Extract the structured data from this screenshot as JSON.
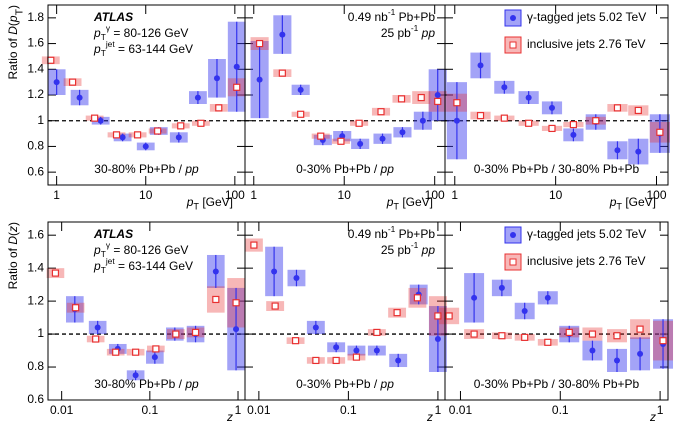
{
  "chart_data": [
    {
      "type": "scatter",
      "log_x": true,
      "xlim": [
        0.8,
        130
      ],
      "ylim": [
        0.5,
        1.9
      ],
      "xticks": [
        1,
        10,
        100
      ],
      "yticks": [
        0.6,
        0.8,
        1,
        1.2,
        1.4,
        1.6,
        1.8
      ],
      "ytick_labels": true,
      "hline": 1,
      "ylabel": [
        {
          "t": "Ratio of "
        },
        {
          "t": "D",
          "italic": true
        },
        {
          "t": "("
        },
        {
          "t": "p",
          "italic": true
        },
        {
          "t": "T",
          "sub": true
        },
        {
          "t": ")"
        }
      ],
      "xlabel": [
        {
          "t": "p",
          "italic": true
        },
        {
          "t": "T",
          "sub": true
        },
        {
          "t": " [GeV]"
        }
      ],
      "annotations": [
        {
          "corner": "top-left",
          "runs": [
            {
              "t": "ATLAS",
              "bold": true,
              "italic": true
            }
          ]
        },
        {
          "corner": "top-left",
          "runs": [
            {
              "t": "p",
              "italic": true
            },
            {
              "t": "T",
              "sub": true
            },
            {
              "t": "γ",
              "sup": true
            },
            {
              "t": " = 80-126 GeV"
            }
          ]
        },
        {
          "corner": "top-left",
          "runs": [
            {
              "t": "p",
              "italic": true
            },
            {
              "t": "T",
              "sub": true
            },
            {
              "t": "jet",
              "sup": true
            },
            {
              "t": " = 63-144 GeV"
            }
          ]
        },
        {
          "corner": "bottom-center",
          "runs": [
            {
              "t": "30-80% Pb+Pb / "
            },
            {
              "t": "pp",
              "italic": true
            }
          ]
        }
      ],
      "series": [
        {
          "color": "#3333ee",
          "marker": "circle",
          "x": [
            1,
            1.81,
            3.12,
            5.5,
            10,
            14,
            23.5,
            38.5,
            63,
            105
          ],
          "values": [
            1.3,
            1.18,
            1.0,
            0.87,
            0.8,
            0.92,
            0.87,
            1.18,
            1.33,
            1.42
          ],
          "errors": [
            0.1,
            0.06,
            0.03,
            0.03,
            0.03,
            0.03,
            0.04,
            0.05,
            0.15,
            0.35
          ]
        },
        {
          "color": "#e83030",
          "marker": "square-open",
          "x": [
            0.86,
            1.51,
            2.67,
            4.7,
            8.1,
            13.6,
            24.7,
            41.6,
            66,
            105
          ],
          "values": [
            1.47,
            1.3,
            1.02,
            0.89,
            0.89,
            0.92,
            0.96,
            0.98,
            1.1,
            1.26
          ],
          "errors": [
            0.03,
            0.03,
            0.02,
            0.02,
            0.02,
            0.02,
            0.02,
            0.02,
            0.03,
            0.07
          ]
        }
      ]
    },
    {
      "type": "scatter",
      "log_x": true,
      "xlim": [
        0.8,
        130
      ],
      "ylim": [
        0.5,
        1.9
      ],
      "xticks": [
        1,
        10,
        100
      ],
      "yticks": [
        0.6,
        0.8,
        1,
        1.2,
        1.4,
        1.6,
        1.8
      ],
      "ytick_labels": false,
      "hline": 1,
      "xlabel": [
        {
          "t": "p",
          "italic": true
        },
        {
          "t": "T",
          "sub": true
        },
        {
          "t": " [GeV]"
        }
      ],
      "annotations": [
        {
          "corner": "top-right",
          "runs": [
            {
              "t": "0.49 nb"
            },
            {
              "t": "-1",
              "sup": true
            },
            {
              "t": " Pb+Pb"
            }
          ]
        },
        {
          "corner": "top-right",
          "runs": [
            {
              "t": "25 pb"
            },
            {
              "t": "-1",
              "sup": true
            },
            {
              "t": " "
            },
            {
              "t": "pp",
              "italic": true
            }
          ]
        },
        {
          "corner": "bottom-center",
          "runs": [
            {
              "t": "0-30% Pb+Pb / "
            },
            {
              "t": "pp",
              "italic": true
            }
          ]
        }
      ],
      "series": [
        {
          "color": "#3333ee",
          "marker": "circle",
          "x": [
            1.16,
            2.07,
            3.3,
            5.8,
            9.5,
            15,
            26.5,
            44,
            74,
            108
          ],
          "values": [
            1.32,
            1.67,
            1.24,
            0.85,
            0.88,
            0.82,
            0.86,
            0.91,
            1.0,
            1.2
          ],
          "errors": [
            0.3,
            0.15,
            0.04,
            0.04,
            0.04,
            0.04,
            0.04,
            0.04,
            0.07,
            0.2
          ]
        },
        {
          "color": "#e83030",
          "marker": "square-open",
          "x": [
            1.16,
            2.07,
            3.3,
            5.5,
            9.2,
            14.6,
            25.5,
            43,
            71,
            108
          ],
          "values": [
            1.6,
            1.37,
            1.05,
            0.88,
            0.84,
            0.98,
            1.07,
            1.17,
            1.18,
            1.15
          ],
          "errors": [
            0.05,
            0.03,
            0.02,
            0.02,
            0.02,
            0.02,
            0.03,
            0.03,
            0.05,
            0.08
          ]
        }
      ]
    },
    {
      "type": "scatter",
      "log_x": true,
      "xlim": [
        0.8,
        130
      ],
      "ylim": [
        0.5,
        1.9
      ],
      "xticks": [
        1,
        10,
        100
      ],
      "yticks": [
        0.6,
        0.8,
        1,
        1.2,
        1.4,
        1.6,
        1.8
      ],
      "ytick_labels": false,
      "hline": 1,
      "legend": "top-right",
      "xlabel": [
        {
          "t": "p",
          "italic": true
        },
        {
          "t": "T",
          "sub": true
        },
        {
          "t": " [GeV]"
        }
      ],
      "annotations": [
        {
          "corner": "bottom-center",
          "runs": [
            {
              "t": "0-30% Pb+Pb / 30-80% Pb+Pb"
            }
          ]
        }
      ],
      "series": [
        {
          "name": "γ-tagged jets 5.02 TeV",
          "color": "#3333ee",
          "marker": "circle",
          "x": [
            1.05,
            1.8,
            3.1,
            5.4,
            9.2,
            15,
            25,
            41,
            66,
            108
          ],
          "values": [
            1.0,
            1.43,
            1.26,
            1.18,
            1.1,
            0.89,
            0.99,
            0.77,
            0.76,
            0.9
          ],
          "errors": [
            0.3,
            0.1,
            0.05,
            0.05,
            0.05,
            0.05,
            0.06,
            0.07,
            0.1,
            0.15
          ]
        },
        {
          "name": "inclusive jets 2.76 TeV",
          "color": "#e83030",
          "marker": "square-open",
          "x": [
            1.05,
            1.8,
            3.1,
            5.4,
            9.2,
            15,
            25,
            41,
            66,
            108
          ],
          "values": [
            1.14,
            1.04,
            1.02,
            0.98,
            0.94,
            0.97,
            1.0,
            1.1,
            1.08,
            0.91
          ],
          "errors": [
            0.07,
            0.03,
            0.02,
            0.02,
            0.02,
            0.02,
            0.03,
            0.03,
            0.04,
            0.08
          ]
        }
      ]
    },
    {
      "type": "scatter",
      "log_x": true,
      "xlim": [
        0.007,
        1.2
      ],
      "ylim": [
        0.6,
        1.68
      ],
      "xticks": [
        0.01,
        0.1,
        1
      ],
      "yticks": [
        0.6,
        0.8,
        1,
        1.2,
        1.4,
        1.6
      ],
      "ytick_labels": true,
      "hline": 1,
      "ylabel": [
        {
          "t": "Ratio of "
        },
        {
          "t": "D",
          "italic": true
        },
        {
          "t": "("
        },
        {
          "t": "z",
          "italic": true
        },
        {
          "t": ")"
        }
      ],
      "xlabel": [
        {
          "t": "z",
          "italic": true
        }
      ],
      "annotations": [
        {
          "corner": "top-left",
          "runs": [
            {
              "t": "ATLAS",
              "bold": true,
              "italic": true
            }
          ]
        },
        {
          "corner": "top-left",
          "runs": [
            {
              "t": "p",
              "italic": true
            },
            {
              "t": "T",
              "sub": true
            },
            {
              "t": "γ",
              "sup": true
            },
            {
              "t": " = 80-126 GeV"
            }
          ]
        },
        {
          "corner": "top-left",
          "runs": [
            {
              "t": "p",
              "italic": true
            },
            {
              "t": "T",
              "sub": true
            },
            {
              "t": "jet",
              "sup": true
            },
            {
              "t": " = 63-144 GeV"
            }
          ]
        },
        {
          "corner": "bottom-center",
          "runs": [
            {
              "t": "30-80% Pb+Pb / "
            },
            {
              "t": "pp",
              "italic": true
            }
          ]
        }
      ],
      "series": [
        {
          "color": "#3333ee",
          "marker": "circle",
          "x": [
            0.0141,
            0.0256,
            0.0433,
            0.069,
            0.114,
            0.192,
            0.33,
            0.56,
            0.95
          ],
          "values": [
            1.15,
            1.04,
            0.91,
            0.75,
            0.86,
            1.0,
            1.0,
            1.38,
            1.03
          ],
          "errors": [
            0.08,
            0.04,
            0.03,
            0.03,
            0.04,
            0.04,
            0.05,
            0.1,
            0.25
          ]
        },
        {
          "color": "#e83030",
          "marker": "square-open",
          "x": [
            0.0085,
            0.0144,
            0.0243,
            0.041,
            0.069,
            0.117,
            0.197,
            0.33,
            0.56,
            0.95
          ],
          "values": [
            1.37,
            1.16,
            0.97,
            0.89,
            0.89,
            0.91,
            1.0,
            1.01,
            1.21,
            1.19
          ],
          "errors": [
            0.03,
            0.03,
            0.02,
            0.02,
            0.02,
            0.02,
            0.03,
            0.03,
            0.08,
            0.15
          ]
        }
      ]
    },
    {
      "type": "scatter",
      "log_x": true,
      "xlim": [
        0.007,
        1.2
      ],
      "ylim": [
        0.6,
        1.68
      ],
      "xticks": [
        0.01,
        0.1,
        1
      ],
      "yticks": [
        0.6,
        0.8,
        1,
        1.2,
        1.4,
        1.6
      ],
      "ytick_labels": false,
      "hline": 1,
      "xlabel": [
        {
          "t": "z",
          "italic": true
        }
      ],
      "annotations": [
        {
          "corner": "top-right",
          "runs": [
            {
              "t": "0.49 nb"
            },
            {
              "t": "-1",
              "sup": true
            },
            {
              "t": " Pb+Pb"
            }
          ]
        },
        {
          "corner": "top-right",
          "runs": [
            {
              "t": "25 pb"
            },
            {
              "t": "-1",
              "sup": true
            },
            {
              "t": " "
            },
            {
              "t": "pp",
              "italic": true
            }
          ]
        },
        {
          "corner": "bottom-center",
          "runs": [
            {
              "t": "0-30% Pb+Pb / "
            },
            {
              "t": "pp",
              "italic": true
            }
          ]
        }
      ],
      "series": [
        {
          "color": "#3333ee",
          "marker": "circle",
          "x": [
            0.0148,
            0.0263,
            0.0433,
            0.073,
            0.123,
            0.208,
            0.36,
            0.61,
            1.0
          ],
          "values": [
            1.38,
            1.34,
            1.04,
            0.92,
            0.9,
            0.9,
            0.84,
            1.24,
            0.97
          ],
          "errors": [
            0.15,
            0.05,
            0.04,
            0.03,
            0.03,
            0.03,
            0.04,
            0.06,
            0.2
          ]
        },
        {
          "color": "#e83030",
          "marker": "square-open",
          "x": [
            0.0088,
            0.0152,
            0.0257,
            0.0433,
            0.073,
            0.123,
            0.208,
            0.35,
            0.59,
            1.0
          ],
          "values": [
            1.54,
            1.17,
            0.96,
            0.84,
            0.84,
            0.86,
            1.01,
            1.13,
            1.22,
            1.11
          ],
          "errors": [
            0.04,
            0.03,
            0.02,
            0.02,
            0.02,
            0.02,
            0.02,
            0.03,
            0.06,
            0.12
          ]
        }
      ]
    },
    {
      "type": "scatter",
      "log_x": true,
      "xlim": [
        0.007,
        1.2
      ],
      "ylim": [
        0.6,
        1.68
      ],
      "xticks": [
        0.01,
        0.1,
        1
      ],
      "yticks": [
        0.6,
        0.8,
        1,
        1.2,
        1.4,
        1.6
      ],
      "ytick_labels": false,
      "hline": 1,
      "legend": "top-right",
      "xlabel": [
        {
          "t": "z",
          "italic": true
        }
      ],
      "annotations": [
        {
          "corner": "bottom-center",
          "runs": [
            {
              "t": "0-30% Pb+Pb / 30-80% Pb+Pb"
            }
          ]
        }
      ],
      "series": [
        {
          "name": "γ-tagged jets 5.02 TeV",
          "color": "#3333ee",
          "marker": "circle",
          "x": [
            0.0137,
            0.026,
            0.044,
            0.075,
            0.123,
            0.21,
            0.37,
            0.63,
            1.07
          ],
          "values": [
            1.22,
            1.28,
            1.14,
            1.22,
            1.0,
            0.9,
            0.84,
            0.88,
            0.94
          ],
          "errors": [
            0.15,
            0.05,
            0.05,
            0.04,
            0.05,
            0.06,
            0.07,
            0.1,
            0.15
          ]
        },
        {
          "name": "inclusive jets 2.76 TeV",
          "color": "#e83030",
          "marker": "square-open",
          "x": [
            0.0077,
            0.0137,
            0.026,
            0.044,
            0.075,
            0.123,
            0.21,
            0.37,
            0.63,
            1.07
          ],
          "values": [
            1.11,
            1.0,
            0.99,
            0.98,
            0.95,
            1.01,
            1.0,
            0.99,
            1.03,
            0.96
          ],
          "errors": [
            0.05,
            0.03,
            0.02,
            0.02,
            0.02,
            0.03,
            0.04,
            0.04,
            0.06,
            0.12
          ]
        }
      ]
    }
  ]
}
